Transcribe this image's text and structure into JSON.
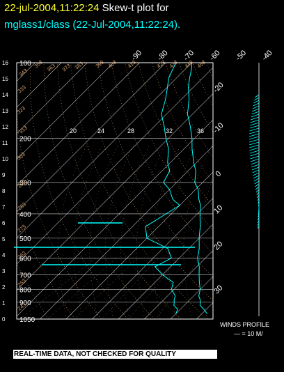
{
  "header": {
    "timestamp": "22-jul-2004,11:22:24",
    "plot_name": "Skew-t plot for",
    "source_line": "mglass1/class (22-Jul-2004,11:22:24)."
  },
  "winds_profile": {
    "label": "WINDS PROFILE",
    "scale": "— = 10 M/"
  },
  "banner": "REAL-TIME DATA, NOT CHECKED FOR QUALITY",
  "colors": {
    "sounding": "#00ffff",
    "background": "#000000",
    "grid": "#ffffff",
    "adiabat": "#e8b07a",
    "title_date": "#ffff33"
  },
  "chart_data": {
    "type": "line",
    "subtype": "skew-t log-p",
    "pressure_ticks": [
      "100",
      "200",
      "300",
      "400",
      "500",
      "600",
      "700",
      "800",
      "900",
      "1050"
    ],
    "height_ticks": [
      "16",
      "15",
      "14",
      "13",
      "12",
      "11",
      "10",
      "9",
      "8",
      "7",
      "6",
      "5",
      "4",
      "3",
      "2",
      "1",
      "0"
    ],
    "temperature_ticks": [
      "-90",
      "-80",
      "-70",
      "-60",
      "-50",
      "-40",
      "-30",
      "-20",
      "-10",
      "0",
      "10",
      "20",
      "30"
    ],
    "isotherm_labels_right": [
      "-20",
      "-10",
      "0",
      "10",
      "20",
      "30"
    ],
    "mixing_ratio_labels": [
      "20",
      "24",
      "28",
      "32",
      "36"
    ],
    "adiabat_labels": [
      "343",
      "333",
      "323",
      "313",
      "303",
      "293",
      "283",
      "273",
      "263",
      "253",
      "243",
      "353",
      "363",
      "373",
      "383",
      "393",
      "403",
      "413",
      "423",
      "433",
      "443",
      "453"
    ],
    "series": [
      {
        "values": [
          [
            1000,
            32
          ],
          [
            960,
            29
          ],
          [
            925,
            26
          ],
          [
            900,
            25
          ],
          [
            880,
            24
          ],
          [
            850,
            22
          ],
          [
            800,
            20
          ],
          [
            750,
            17
          ],
          [
            700,
            14
          ],
          [
            650,
            11
          ],
          [
            600,
            7
          ],
          [
            550,
            4
          ],
          [
            500,
            0
          ],
          [
            450,
            -4
          ],
          [
            400,
            -9
          ],
          [
            370,
            -12
          ],
          [
            350,
            -15
          ],
          [
            320,
            -19
          ],
          [
            300,
            -23
          ],
          [
            270,
            -27
          ],
          [
            250,
            -31
          ],
          [
            220,
            -37
          ],
          [
            200,
            -41
          ],
          [
            180,
            -46
          ],
          [
            160,
            -52
          ],
          [
            140,
            -57
          ],
          [
            125,
            -62
          ],
          [
            115,
            -65
          ],
          [
            105,
            -68
          ],
          [
            100,
            -70
          ]
        ]
      },
      {
        "values": [
          [
            1000,
            20
          ],
          [
            960,
            19
          ],
          [
            925,
            16
          ],
          [
            900,
            15
          ],
          [
            880,
            14
          ],
          [
            850,
            13
          ],
          [
            800,
            9
          ],
          [
            750,
            7
          ],
          [
            700,
            0
          ],
          [
            650,
            -6
          ],
          [
            600,
            -3
          ],
          [
            550,
            -8
          ],
          [
            500,
            -20
          ],
          [
            450,
            -25
          ],
          [
            400,
            -22
          ],
          [
            370,
            -20
          ],
          [
            350,
            -25
          ],
          [
            320,
            -30
          ],
          [
            300,
            -35
          ],
          [
            270,
            -37
          ],
          [
            250,
            -41
          ],
          [
            220,
            -46
          ],
          [
            200,
            -51
          ],
          [
            180,
            -56
          ],
          [
            160,
            -62
          ],
          [
            140,
            -66
          ],
          [
            125,
            -70
          ],
          [
            115,
            -73
          ],
          [
            105,
            -75
          ],
          [
            100,
            -76
          ]
        ]
      }
    ]
  }
}
